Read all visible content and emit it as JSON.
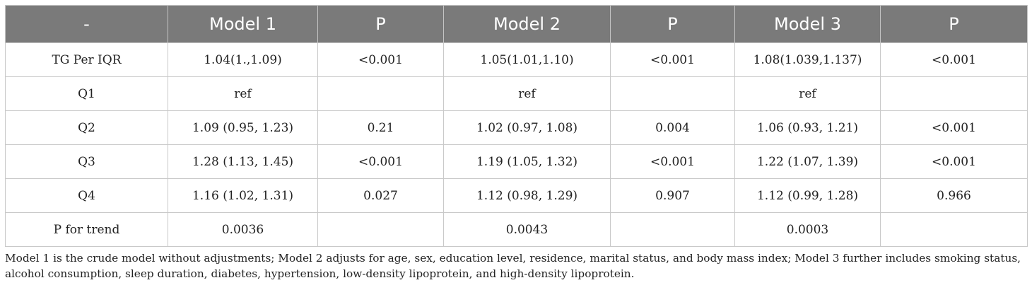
{
  "table": {
    "headers": [
      "-",
      "Model 1",
      "P",
      "Model 2",
      "P",
      "Model 3",
      "P"
    ],
    "rows": [
      [
        "TG Per IQR",
        "1.04(1.,1.09)",
        "<0.001",
        "1.05(1.01,1.10)",
        "<0.001",
        "1.08(1.039,1.137)",
        "<0.001"
      ],
      [
        "Q1",
        "ref",
        "",
        "ref",
        "",
        "ref",
        ""
      ],
      [
        "Q2",
        "1.09 (0.95, 1.23)",
        "0.21",
        "1.02 (0.97, 1.08)",
        "0.004",
        "1.06 (0.93, 1.21)",
        "<0.001"
      ],
      [
        "Q3",
        "1.28 (1.13, 1.45)",
        "<0.001",
        "1.19 (1.05, 1.32)",
        "<0.001",
        "1.22 (1.07, 1.39)",
        "<0.001"
      ],
      [
        "Q4",
        "1.16 (1.02, 1.31)",
        "0.027",
        "1.12 (0.98, 1.29)",
        "0.907",
        "1.12 (0.99, 1.28)",
        "0.966"
      ],
      [
        "P for trend",
        "0.0036",
        "",
        "0.0043",
        "",
        "0.0003",
        ""
      ]
    ]
  },
  "footnote": "Model 1 is the crude model without adjustments; Model 2 adjusts for age, sex, education level, residence, marital status, and body mass index; Model 3 further includes smoking status, alcohol consumption, sleep duration, diabetes, hypertension, low-density lipoprotein, and high-density lipoprotein.",
  "colors": {
    "header_bg": "#7a7a7a",
    "header_text": "#ffffff",
    "border": "#c9c9c9"
  }
}
